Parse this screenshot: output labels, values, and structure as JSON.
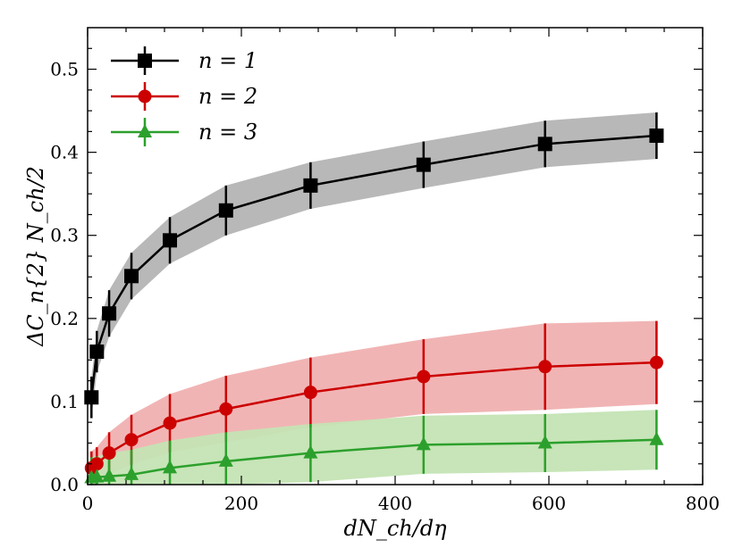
{
  "chart_data": {
    "type": "line",
    "title": "",
    "xlabel": "dN_ch/dη",
    "ylabel": "ΔC_n{2} N_ch/2",
    "xlim": [
      0,
      800
    ],
    "ylim": [
      0,
      0.55
    ],
    "xticks": [
      0,
      200,
      400,
      600,
      800
    ],
    "yticks": [
      0.0,
      0.1,
      0.2,
      0.3,
      0.4,
      0.5
    ],
    "xtick_labels": [
      "0",
      "200",
      "400",
      "600",
      "800"
    ],
    "ytick_labels": [
      "0.0",
      "0.1",
      "0.2",
      "0.3",
      "0.4",
      "0.5"
    ],
    "legend_position": "top-left",
    "series": [
      {
        "name": "n = 1",
        "color": "#000000",
        "band_color": "#b4b4b4",
        "marker": "square",
        "x": [
          5,
          12,
          28,
          57,
          107,
          180,
          290,
          437,
          595,
          740
        ],
        "y": [
          0.105,
          0.16,
          0.206,
          0.251,
          0.294,
          0.33,
          0.36,
          0.385,
          0.41,
          0.42
        ],
        "yerr": [
          0.025,
          0.025,
          0.028,
          0.028,
          0.028,
          0.03,
          0.028,
          0.028,
          0.028,
          0.028
        ],
        "band_lower": [
          0.08,
          0.135,
          0.178,
          0.223,
          0.266,
          0.3,
          0.332,
          0.357,
          0.382,
          0.392
        ],
        "band_upper": [
          0.13,
          0.185,
          0.234,
          0.279,
          0.322,
          0.36,
          0.388,
          0.413,
          0.438,
          0.448
        ]
      },
      {
        "name": "n = 2",
        "color": "#cc0000",
        "band_color": "#f0b0b0",
        "marker": "circle",
        "x": [
          5,
          12,
          28,
          57,
          107,
          180,
          290,
          437,
          595,
          740
        ],
        "y": [
          0.02,
          0.025,
          0.038,
          0.054,
          0.074,
          0.091,
          0.111,
          0.13,
          0.142,
          0.147
        ],
        "yerr": [
          0.02,
          0.02,
          0.025,
          0.03,
          0.035,
          0.04,
          0.042,
          0.045,
          0.052,
          0.05
        ],
        "band_lower": [
          0.0,
          0.005,
          0.013,
          0.024,
          0.039,
          0.051,
          0.069,
          0.085,
          0.09,
          0.097
        ],
        "band_upper": [
          0.04,
          0.045,
          0.063,
          0.084,
          0.109,
          0.131,
          0.153,
          0.175,
          0.194,
          0.197
        ]
      },
      {
        "name": "n = 3",
        "color": "#2ca02c",
        "band_color": "#c4e4b4",
        "marker": "triangle",
        "x": [
          5,
          12,
          28,
          57,
          107,
          180,
          290,
          437,
          595,
          740
        ],
        "y": [
          0.008,
          0.009,
          0.01,
          0.012,
          0.02,
          0.028,
          0.038,
          0.048,
          0.05,
          0.054
        ],
        "yerr": [
          0.025,
          0.025,
          0.028,
          0.03,
          0.033,
          0.035,
          0.035,
          0.035,
          0.035,
          0.036
        ],
        "band_lower": [
          0.0,
          0.0,
          0.0,
          0.0,
          0.0,
          0.0,
          0.003,
          0.013,
          0.015,
          0.018
        ],
        "band_upper": [
          0.033,
          0.034,
          0.038,
          0.042,
          0.053,
          0.063,
          0.073,
          0.083,
          0.085,
          0.09
        ]
      }
    ]
  }
}
